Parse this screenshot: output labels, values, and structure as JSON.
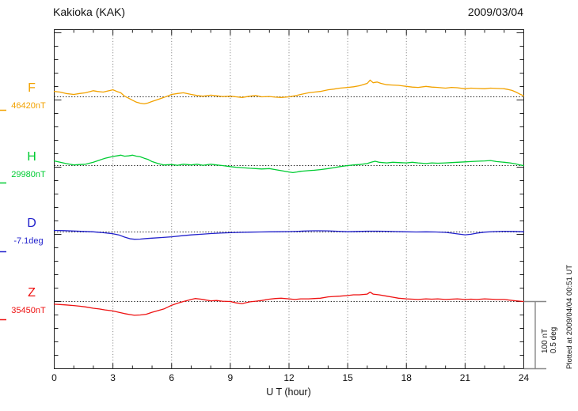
{
  "chart_data": {
    "type": "line",
    "title": "Kakioka (KAK)",
    "date": "2009/03/04",
    "xlabel": "U T (hour)",
    "x_range": [
      0,
      24
    ],
    "x_ticks": [
      0,
      3,
      6,
      9,
      12,
      15,
      18,
      21,
      24
    ],
    "grid_hours": [
      3,
      6,
      9,
      12,
      15,
      18,
      21
    ],
    "grid": "dotted-vertical-every-3h, dotted baseline per trace",
    "legend_position": "left-of-axis",
    "scale": {
      "nT_per_bar": 100,
      "deg_per_bar": 0.5,
      "label_nt": "100 nT",
      "label_deg": "0.5 deg"
    },
    "plotted_note": "Plotted at 2009/04/04 00:51 UT",
    "series": [
      {
        "name": "F",
        "baseline_label": "46420nT",
        "baseline_value": 46420,
        "unit": "nT",
        "color": "#f2a200",
        "points": [
          [
            0,
            8
          ],
          [
            0.3,
            7
          ],
          [
            0.6,
            5
          ],
          [
            1,
            3.5
          ],
          [
            1.3,
            5
          ],
          [
            1.6,
            6
          ],
          [
            2,
            9
          ],
          [
            2.2,
            8
          ],
          [
            2.5,
            7
          ],
          [
            2.8,
            9
          ],
          [
            3,
            10.5
          ],
          [
            3.2,
            8
          ],
          [
            3.4,
            6
          ],
          [
            3.6,
            1
          ],
          [
            3.8,
            -2
          ],
          [
            4,
            -5
          ],
          [
            4.2,
            -8
          ],
          [
            4.4,
            -9.5
          ],
          [
            4.6,
            -10.5
          ],
          [
            4.8,
            -9
          ],
          [
            5,
            -7
          ],
          [
            5.3,
            -4
          ],
          [
            5.6,
            -1
          ],
          [
            6,
            3.5
          ],
          [
            6.3,
            5
          ],
          [
            6.6,
            6
          ],
          [
            7,
            3.5
          ],
          [
            7.3,
            2
          ],
          [
            7.6,
            1
          ],
          [
            8,
            2.5
          ],
          [
            8.3,
            1.5
          ],
          [
            8.6,
            0.5
          ],
          [
            9,
            1
          ],
          [
            9.3,
            0
          ],
          [
            9.6,
            -1
          ],
          [
            10,
            1
          ],
          [
            10.3,
            2
          ],
          [
            10.6,
            0
          ],
          [
            11,
            0.5
          ],
          [
            11.3,
            -0.5
          ],
          [
            11.6,
            -1
          ],
          [
            12,
            0
          ],
          [
            12.3,
            1.5
          ],
          [
            12.6,
            3.5
          ],
          [
            13,
            6
          ],
          [
            13.3,
            7
          ],
          [
            13.6,
            8
          ],
          [
            14,
            10.5
          ],
          [
            14.3,
            11.5
          ],
          [
            14.6,
            13
          ],
          [
            15,
            14
          ],
          [
            15.3,
            15
          ],
          [
            15.6,
            16.5
          ],
          [
            16,
            20
          ],
          [
            16.15,
            25
          ],
          [
            16.3,
            21
          ],
          [
            16.5,
            22
          ],
          [
            16.7,
            20
          ],
          [
            17,
            18
          ],
          [
            17.3,
            17.5
          ],
          [
            17.6,
            17
          ],
          [
            18,
            15.5
          ],
          [
            18.3,
            14.5
          ],
          [
            18.6,
            14
          ],
          [
            19,
            15.5
          ],
          [
            19.3,
            14.5
          ],
          [
            19.6,
            14
          ],
          [
            20,
            13
          ],
          [
            20.3,
            14
          ],
          [
            20.6,
            13.5
          ],
          [
            21,
            12
          ],
          [
            21.3,
            13
          ],
          [
            21.6,
            12.5
          ],
          [
            22,
            12
          ],
          [
            22.3,
            13
          ],
          [
            22.6,
            12.5
          ],
          [
            23,
            12
          ],
          [
            23.2,
            11
          ],
          [
            23.4,
            9.5
          ],
          [
            23.6,
            7
          ],
          [
            23.8,
            4
          ],
          [
            24,
            1.5
          ]
        ]
      },
      {
        "name": "H",
        "baseline_label": "29980nT",
        "baseline_value": 29980,
        "unit": "nT",
        "color": "#00cc33",
        "points": [
          [
            0,
            7
          ],
          [
            0.3,
            5
          ],
          [
            0.6,
            3
          ],
          [
            1,
            1
          ],
          [
            1.3,
            1.5
          ],
          [
            1.6,
            2
          ],
          [
            2,
            5
          ],
          [
            2.3,
            8
          ],
          [
            2.6,
            11
          ],
          [
            3,
            13.5
          ],
          [
            3.2,
            14.5
          ],
          [
            3.4,
            15.5
          ],
          [
            3.6,
            14
          ],
          [
            3.8,
            14.5
          ],
          [
            4,
            15.5
          ],
          [
            4.2,
            14
          ],
          [
            4.4,
            13
          ],
          [
            4.6,
            11
          ],
          [
            4.8,
            9
          ],
          [
            5,
            6
          ],
          [
            5.3,
            3
          ],
          [
            5.6,
            1
          ],
          [
            6,
            1.5
          ],
          [
            6.3,
            0.5
          ],
          [
            6.6,
            2
          ],
          [
            7,
            1
          ],
          [
            7.3,
            2
          ],
          [
            7.6,
            0.5
          ],
          [
            8,
            2
          ],
          [
            8.3,
            1
          ],
          [
            8.6,
            0
          ],
          [
            9,
            -1.5
          ],
          [
            9.3,
            -2.5
          ],
          [
            9.6,
            -3
          ],
          [
            10,
            -4
          ],
          [
            10.3,
            -4.5
          ],
          [
            10.6,
            -5
          ],
          [
            11,
            -4.5
          ],
          [
            11.3,
            -6
          ],
          [
            11.6,
            -7.5
          ],
          [
            12,
            -9.5
          ],
          [
            12.2,
            -10.5
          ],
          [
            12.4,
            -9.5
          ],
          [
            12.6,
            -8.5
          ],
          [
            13,
            -7.5
          ],
          [
            13.3,
            -7
          ],
          [
            13.6,
            -6
          ],
          [
            14,
            -4.5
          ],
          [
            14.3,
            -3
          ],
          [
            14.6,
            -1.5
          ],
          [
            15,
            0
          ],
          [
            15.3,
            1
          ],
          [
            15.6,
            1.5
          ],
          [
            16,
            3
          ],
          [
            16.2,
            5
          ],
          [
            16.4,
            6.5
          ],
          [
            16.6,
            5
          ],
          [
            17,
            4
          ],
          [
            17.3,
            5
          ],
          [
            17.6,
            4.5
          ],
          [
            18,
            4
          ],
          [
            18.3,
            5
          ],
          [
            18.6,
            4
          ],
          [
            19,
            3
          ],
          [
            19.3,
            4
          ],
          [
            19.6,
            3.5
          ],
          [
            20,
            4
          ],
          [
            20.3,
            4.5
          ],
          [
            20.6,
            5
          ],
          [
            21,
            5.5
          ],
          [
            21.3,
            6
          ],
          [
            21.6,
            6.5
          ],
          [
            22,
            7
          ],
          [
            22.3,
            7.5
          ],
          [
            22.6,
            6
          ],
          [
            23,
            5
          ],
          [
            23.3,
            4
          ],
          [
            23.6,
            2.5
          ],
          [
            23.8,
            1
          ],
          [
            24,
            0
          ]
        ]
      },
      {
        "name": "D",
        "baseline_label": "-7.1deg",
        "baseline_value": -7.1,
        "unit": "deg",
        "color": "#2222cc",
        "points": [
          [
            0,
            0.012
          ],
          [
            0.5,
            0.01
          ],
          [
            1,
            0.007
          ],
          [
            1.5,
            0.004
          ],
          [
            2,
            0.001
          ],
          [
            2.5,
            -0.005
          ],
          [
            3,
            -0.013
          ],
          [
            3.3,
            -0.022
          ],
          [
            3.6,
            -0.038
          ],
          [
            3.9,
            -0.051
          ],
          [
            4.1,
            -0.054
          ],
          [
            4.4,
            -0.053
          ],
          [
            4.7,
            -0.049
          ],
          [
            5,
            -0.046
          ],
          [
            5.5,
            -0.041
          ],
          [
            6,
            -0.036
          ],
          [
            6.5,
            -0.028
          ],
          [
            7,
            -0.022
          ],
          [
            7.5,
            -0.017
          ],
          [
            8,
            -0.012
          ],
          [
            8.5,
            -0.008
          ],
          [
            9,
            -0.005
          ],
          [
            9.5,
            -0.003
          ],
          [
            10,
            -0.001
          ],
          [
            10.5,
            0
          ],
          [
            11,
            0.001
          ],
          [
            11.5,
            0.002
          ],
          [
            12,
            0.003
          ],
          [
            12.5,
            0.005
          ],
          [
            13,
            0.008
          ],
          [
            13.3,
            0.009
          ],
          [
            13.6,
            0.009
          ],
          [
            14,
            0.008
          ],
          [
            14.5,
            0.005
          ],
          [
            15,
            0.002
          ],
          [
            15.5,
            0.004
          ],
          [
            16,
            0.006
          ],
          [
            16.5,
            0.006
          ],
          [
            17,
            0.005
          ],
          [
            17.5,
            0.003
          ],
          [
            18,
            0.001
          ],
          [
            18.5,
            0
          ],
          [
            19,
            0.001
          ],
          [
            19.5,
            0
          ],
          [
            20,
            -0.003
          ],
          [
            20.3,
            -0.008
          ],
          [
            20.6,
            -0.014
          ],
          [
            21,
            -0.021
          ],
          [
            21.3,
            -0.017
          ],
          [
            21.6,
            -0.009
          ],
          [
            22,
            -0.001
          ],
          [
            22.5,
            0.003
          ],
          [
            23,
            0.005
          ],
          [
            23.5,
            0.004
          ],
          [
            24,
            0.002
          ]
        ]
      },
      {
        "name": "Z",
        "baseline_label": "35450nT",
        "baseline_value": 35450,
        "unit": "nT",
        "color": "#ee1111",
        "points": [
          [
            0,
            -4
          ],
          [
            0.3,
            -4.5
          ],
          [
            0.6,
            -5
          ],
          [
            1,
            -6
          ],
          [
            1.3,
            -7
          ],
          [
            1.6,
            -8
          ],
          [
            2,
            -10
          ],
          [
            2.3,
            -11
          ],
          [
            2.6,
            -12.5
          ],
          [
            3,
            -14
          ],
          [
            3.3,
            -16
          ],
          [
            3.6,
            -18
          ],
          [
            3.9,
            -19.5
          ],
          [
            4.1,
            -20.5
          ],
          [
            4.4,
            -20
          ],
          [
            4.7,
            -19
          ],
          [
            5,
            -16
          ],
          [
            5.3,
            -13.5
          ],
          [
            5.6,
            -11
          ],
          [
            6,
            -5.5
          ],
          [
            6.3,
            -2.5
          ],
          [
            6.6,
            0
          ],
          [
            7,
            3
          ],
          [
            7.2,
            4.5
          ],
          [
            7.5,
            3.5
          ],
          [
            7.8,
            2
          ],
          [
            8,
            1
          ],
          [
            8.3,
            1.5
          ],
          [
            8.6,
            0.5
          ],
          [
            9,
            0
          ],
          [
            9.3,
            -2
          ],
          [
            9.6,
            -3
          ],
          [
            10,
            -0.5
          ],
          [
            10.3,
            0.5
          ],
          [
            10.6,
            1.5
          ],
          [
            11,
            3.5
          ],
          [
            11.3,
            4.5
          ],
          [
            11.6,
            5
          ],
          [
            12,
            4
          ],
          [
            12.3,
            3
          ],
          [
            12.6,
            4
          ],
          [
            13,
            4
          ],
          [
            13.3,
            4.5
          ],
          [
            13.6,
            5
          ],
          [
            14,
            7
          ],
          [
            14.3,
            7.5
          ],
          [
            14.6,
            8
          ],
          [
            15,
            9
          ],
          [
            15.3,
            10
          ],
          [
            15.6,
            10
          ],
          [
            16,
            11
          ],
          [
            16.15,
            14
          ],
          [
            16.3,
            11
          ],
          [
            16.6,
            10
          ],
          [
            17,
            8
          ],
          [
            17.3,
            6.5
          ],
          [
            17.6,
            5
          ],
          [
            18,
            4
          ],
          [
            18.3,
            3.5
          ],
          [
            18.6,
            3
          ],
          [
            19,
            4
          ],
          [
            19.3,
            3.5
          ],
          [
            19.6,
            4
          ],
          [
            20,
            3
          ],
          [
            20.3,
            3.5
          ],
          [
            20.6,
            4
          ],
          [
            21,
            3
          ],
          [
            21.3,
            3.5
          ],
          [
            21.6,
            3
          ],
          [
            22,
            4
          ],
          [
            22.3,
            3.5
          ],
          [
            22.6,
            3
          ],
          [
            23,
            3
          ],
          [
            23.3,
            2
          ],
          [
            23.6,
            1
          ],
          [
            24,
            0
          ]
        ]
      }
    ]
  }
}
